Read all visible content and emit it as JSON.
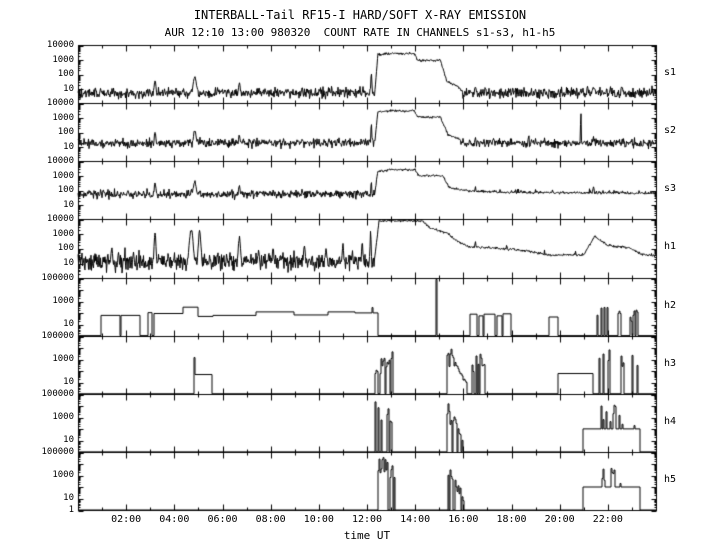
{
  "header": {
    "title": "INTERBALL-Tail RF15-I HARD/SOFT X-RAY EMISSION",
    "subtitle": "AUR 12:10 13:00 980320  COUNT RATE IN CHANNELS s1-s3, h1-h5"
  },
  "chart_data": {
    "type": "line",
    "title": "INTERBALL-Tail RF15-I HARD/SOFT X-RAY EMISSION",
    "subtitle": "AUR 12:10 13:00 980320  COUNT RATE IN CHANNELS s1-s3, h1-h5",
    "xlabel": "time UT",
    "x_range_hours": [
      0,
      24
    ],
    "x_ticks": [
      {
        "hour": 2,
        "label": "02:00"
      },
      {
        "hour": 4,
        "label": "04:00"
      },
      {
        "hour": 6,
        "label": "06:00"
      },
      {
        "hour": 8,
        "label": "08:00"
      },
      {
        "hour": 10,
        "label": "10:00"
      },
      {
        "hour": 12,
        "label": "12:00"
      },
      {
        "hour": 14,
        "label": "14:00"
      },
      {
        "hour": 16,
        "label": "16:00"
      },
      {
        "hour": 18,
        "label": "18:00"
      },
      {
        "hour": 20,
        "label": "20:00"
      },
      {
        "hour": 22,
        "label": "22:00"
      }
    ],
    "scale": "log",
    "grid": false,
    "legend": "none",
    "panels": [
      {
        "label": "s1",
        "ymax": 10000,
        "style": "noisy",
        "baseline": 5,
        "noise_sigma": 0.18,
        "seed": 101,
        "yticks": [
          {
            "value": 10000,
            "label": "10000"
          },
          {
            "value": 1000,
            "label": "1000"
          },
          {
            "value": 100,
            "label": "100"
          },
          {
            "value": 10,
            "label": "10"
          }
        ],
        "envelope": [
          [
            12.32,
            5
          ],
          [
            12.45,
            2200
          ],
          [
            13.0,
            2600
          ],
          [
            13.95,
            2600
          ],
          [
            14.1,
            900
          ],
          [
            15.05,
            900
          ],
          [
            15.3,
            35
          ],
          [
            15.9,
            10
          ]
        ],
        "spikes": [
          [
            3.2,
            40,
            0.05
          ],
          [
            4.85,
            70,
            0.09
          ],
          [
            6.7,
            28,
            0.05
          ],
          [
            9.3,
            14,
            0.04
          ],
          [
            12.18,
            120,
            0.03
          ],
          [
            16.5,
            16,
            0.05
          ],
          [
            19.0,
            10,
            0.04
          ],
          [
            21.4,
            15,
            0.05
          ],
          [
            22.6,
            14,
            0.04
          ]
        ]
      },
      {
        "label": "s2",
        "ymax": 10000,
        "style": "noisy",
        "baseline": 18,
        "noise_sigma": 0.15,
        "seed": 102,
        "yticks": [
          {
            "value": 10000,
            "label": "10000"
          },
          {
            "value": 1000,
            "label": "1000"
          },
          {
            "value": 100,
            "label": "100"
          },
          {
            "value": 10,
            "label": "10"
          }
        ],
        "envelope": [
          [
            12.32,
            18
          ],
          [
            12.45,
            2500
          ],
          [
            13.0,
            3000
          ],
          [
            13.95,
            3000
          ],
          [
            14.1,
            1100
          ],
          [
            15.05,
            1100
          ],
          [
            15.35,
            70
          ],
          [
            15.9,
            30
          ]
        ],
        "spikes": [
          [
            3.2,
            160,
            0.05
          ],
          [
            4.85,
            170,
            0.09
          ],
          [
            6.7,
            90,
            0.05
          ],
          [
            9.3,
            45,
            0.04
          ],
          [
            12.18,
            500,
            0.03
          ],
          [
            16.5,
            55,
            0.05
          ],
          [
            19.0,
            40,
            0.04
          ],
          [
            20.88,
            3000,
            0.02
          ],
          [
            21.4,
            55,
            0.05
          ],
          [
            22.6,
            45,
            0.04
          ]
        ]
      },
      {
        "label": "s3",
        "ymax": 10000,
        "style": "noisy",
        "baseline": 55,
        "noise_sigma": 0.14,
        "seed": 103,
        "yticks": [
          {
            "value": 10000,
            "label": "10000"
          },
          {
            "value": 1000,
            "label": "1000"
          },
          {
            "value": 100,
            "label": "100"
          },
          {
            "value": 10,
            "label": "10"
          }
        ],
        "envelope": [
          [
            12.32,
            55
          ],
          [
            12.45,
            2000
          ],
          [
            13.0,
            2600
          ],
          [
            14.0,
            2600
          ],
          [
            14.15,
            1000
          ],
          [
            15.15,
            1000
          ],
          [
            15.4,
            160
          ],
          [
            16.2,
            90
          ],
          [
            18.0,
            70
          ],
          [
            24,
            60
          ]
        ],
        "spikes": [
          [
            1.05,
            160,
            0.04
          ],
          [
            3.2,
            430,
            0.06
          ],
          [
            4.85,
            520,
            0.11
          ],
          [
            6.7,
            300,
            0.06
          ],
          [
            8.1,
            130,
            0.04
          ],
          [
            9.3,
            120,
            0.04
          ],
          [
            12.18,
            700,
            0.03
          ],
          [
            16.5,
            260,
            0.05
          ],
          [
            19.0,
            120,
            0.04
          ],
          [
            21.4,
            250,
            0.06
          ],
          [
            22.6,
            160,
            0.04
          ]
        ]
      },
      {
        "label": "h1",
        "ymax": 10000,
        "style": "noisy",
        "baseline": 13,
        "noise_sigma": 0.3,
        "seed": 104,
        "yticks": [
          {
            "value": 10000,
            "label": "10000"
          },
          {
            "value": 1000,
            "label": "1000"
          },
          {
            "value": 100,
            "label": "100"
          },
          {
            "value": 10,
            "label": "10"
          }
        ],
        "envelope": [
          [
            12.3,
            13
          ],
          [
            12.5,
            8000
          ],
          [
            14.3,
            8000
          ],
          [
            14.6,
            2500
          ],
          [
            15.3,
            1200
          ],
          [
            15.7,
            350
          ],
          [
            16.2,
            130
          ],
          [
            17.2,
            110
          ],
          [
            18.6,
            70
          ],
          [
            19.6,
            35
          ],
          [
            21.0,
            35
          ],
          [
            21.45,
            700
          ],
          [
            22.0,
            160
          ],
          [
            22.9,
            110
          ],
          [
            23.4,
            40
          ],
          [
            24,
            30
          ]
        ],
        "spikes": [
          [
            1.4,
            130,
            0.05
          ],
          [
            2.3,
            60,
            0.04
          ],
          [
            3.2,
            1500,
            0.05
          ],
          [
            4.7,
            2600,
            0.1
          ],
          [
            5.05,
            1800,
            0.07
          ],
          [
            6.7,
            800,
            0.06
          ],
          [
            7.5,
            90,
            0.04
          ],
          [
            8.1,
            150,
            0.04
          ],
          [
            9.4,
            200,
            0.05
          ],
          [
            10.3,
            130,
            0.04
          ],
          [
            11.0,
            250,
            0.04
          ],
          [
            11.8,
            300,
            0.04
          ],
          [
            12.15,
            2000,
            0.03
          ],
          [
            16.5,
            500,
            0.05
          ],
          [
            17.8,
            200,
            0.04
          ]
        ]
      },
      {
        "label": "h2",
        "ymax": 100000,
        "style": "steps",
        "baseline": 1,
        "seed": 105,
        "yticks": [
          {
            "value": 100000,
            "label": "100000"
          },
          {
            "value": 1000,
            "label": "1000"
          },
          {
            "value": 10,
            "label": "10"
          }
        ],
        "blocks": [
          [
            0.95,
            1.72,
            55
          ],
          [
            1.78,
            2.55,
            55
          ],
          [
            2.9,
            3.06,
            95
          ],
          [
            3.12,
            4.35,
            80
          ],
          [
            4.35,
            4.95,
            280
          ],
          [
            4.95,
            5.6,
            45
          ],
          [
            5.6,
            7.35,
            55
          ],
          [
            7.35,
            8.95,
            110
          ],
          [
            8.95,
            10.35,
            60
          ],
          [
            10.35,
            11.5,
            110
          ],
          [
            11.5,
            12.42,
            90
          ],
          [
            16.25,
            16.55,
            70
          ],
          [
            16.62,
            16.78,
            50
          ],
          [
            16.82,
            17.3,
            70
          ],
          [
            17.36,
            17.6,
            50
          ],
          [
            17.62,
            17.95,
            75
          ],
          [
            19.55,
            19.9,
            40
          ]
        ],
        "spikes": [
          [
            12.2,
            260
          ],
          [
            14.85,
            70000
          ]
        ],
        "bursts": [
          {
            "t0": 21.55,
            "t1": 22.12,
            "peak": 350,
            "density": 0.45,
            "shape": "flat"
          },
          {
            "t0": 22.25,
            "t1": 22.6,
            "peak": 220,
            "density": 0.4,
            "shape": "flat"
          },
          {
            "t0": 22.92,
            "t1": 23.25,
            "peak": 160,
            "density": 0.4,
            "shape": "flat"
          }
        ]
      },
      {
        "label": "h3",
        "ymax": 100000,
        "style": "steps",
        "baseline": 1,
        "seed": 106,
        "yticks": [
          {
            "value": 100000,
            "label": "100000"
          },
          {
            "value": 1000,
            "label": "1000"
          },
          {
            "value": 10,
            "label": "10"
          }
        ],
        "blocks": [
          [
            4.82,
            5.55,
            45
          ],
          [
            19.9,
            21.35,
            55
          ]
        ],
        "spikes": [
          [
            4.8,
            1300
          ]
        ],
        "bursts": [
          {
            "t0": 12.3,
            "t1": 13.05,
            "peak": 70000,
            "density": 0.75,
            "shape": "rise"
          },
          {
            "t0": 15.25,
            "t1": 16.15,
            "peak": 70000,
            "density": 0.85,
            "shape": "decay"
          },
          {
            "t0": 16.3,
            "t1": 16.92,
            "peak": 3000,
            "density": 0.5,
            "shape": "flat"
          },
          {
            "t0": 21.6,
            "t1": 22.15,
            "peak": 16000,
            "density": 0.55,
            "shape": "flat"
          },
          {
            "t0": 22.3,
            "t1": 22.65,
            "peak": 9000,
            "density": 0.5,
            "shape": "flat"
          },
          {
            "t0": 22.95,
            "t1": 23.25,
            "peak": 5000,
            "density": 0.45,
            "shape": "flat"
          }
        ]
      },
      {
        "label": "h4",
        "ymax": 100000,
        "style": "steps",
        "baseline": 1,
        "seed": 107,
        "yticks": [
          {
            "value": 100000,
            "label": "100000"
          },
          {
            "value": 1000,
            "label": "1000"
          },
          {
            "value": 10,
            "label": "10"
          }
        ],
        "blocks": [
          [
            20.95,
            23.3,
            95
          ]
        ],
        "spikes": [
          [
            12.35,
            20000
          ]
        ],
        "bursts": [
          {
            "t0": 12.4,
            "t1": 12.62,
            "peak": 25000,
            "density": 0.5,
            "shape": "flat"
          },
          {
            "t0": 12.75,
            "t1": 13.05,
            "peak": 40000,
            "density": 0.6,
            "shape": "flat"
          },
          {
            "t0": 15.3,
            "t1": 15.98,
            "peak": 65000,
            "density": 0.85,
            "shape": "decay"
          },
          {
            "t0": 21.7,
            "t1": 22.3,
            "peak": 16000,
            "density": 0.6,
            "shape": "flat"
          },
          {
            "t0": 22.4,
            "t1": 22.62,
            "peak": 9000,
            "density": 0.5,
            "shape": "flat"
          },
          {
            "t0": 23.0,
            "t1": 23.2,
            "peak": 5000,
            "density": 0.45,
            "shape": "flat"
          }
        ]
      },
      {
        "label": "h5",
        "ymax": 100000,
        "style": "steps",
        "baseline": 1,
        "seed": 108,
        "yticks": [
          {
            "value": 100000,
            "label": "100000"
          },
          {
            "value": 1000,
            "label": "1000"
          },
          {
            "value": 10,
            "label": "10"
          },
          {
            "value": 1,
            "label": "1"
          }
        ],
        "blocks": [
          [
            20.95,
            23.3,
            95
          ]
        ],
        "spikes": [],
        "bursts": [
          {
            "t0": 12.42,
            "t1": 13.15,
            "peak": 55000,
            "density": 0.8,
            "shape": "flat"
          },
          {
            "t0": 15.35,
            "t1": 16.0,
            "peak": 40000,
            "density": 0.8,
            "shape": "decay"
          },
          {
            "t0": 21.7,
            "t1": 22.3,
            "peak": 16000,
            "density": 0.6,
            "shape": "flat"
          },
          {
            "t0": 22.4,
            "t1": 22.65,
            "peak": 9000,
            "density": 0.5,
            "shape": "flat"
          }
        ]
      }
    ]
  }
}
